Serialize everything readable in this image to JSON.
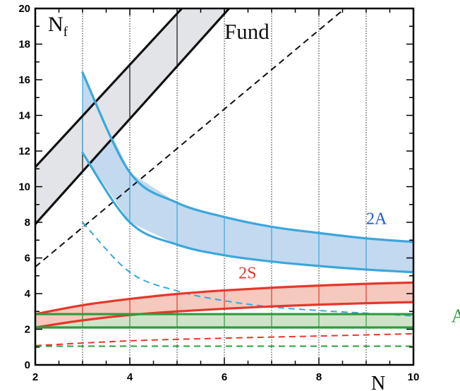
{
  "chart_data": {
    "type": "line",
    "xlim": [
      2,
      10
    ],
    "ylim": [
      0,
      20
    ],
    "x_ticks": [
      "2",
      "4",
      "6",
      "8",
      "10"
    ],
    "y_ticks": [
      "0",
      "2",
      "4",
      "6",
      "8",
      "10",
      "12",
      "14",
      "16",
      "18",
      "20"
    ],
    "xlabel": "N",
    "ylabel": "N",
    "ylabel_sub": "f",
    "vertical_gridlines_x": [
      3,
      4,
      5,
      6,
      7,
      8,
      9
    ],
    "bands": [
      {
        "name": "Fund",
        "color": "#111111",
        "fill": "#e3e4e8",
        "lower": [
          [
            2,
            7.9
          ],
          [
            6.1,
            20
          ]
        ],
        "upper": [
          [
            2,
            11.1
          ],
          [
            5.1,
            20
          ]
        ],
        "dashed": [
          [
            2,
            5.5
          ],
          [
            8.55,
            20
          ]
        ]
      },
      {
        "name": "2A",
        "color": "#3aa7dc",
        "fill": "#c2d9ef",
        "upper": [
          [
            3,
            16.4
          ],
          [
            4,
            10.8
          ],
          [
            5,
            9.1
          ],
          [
            6,
            8.3
          ],
          [
            7,
            7.75
          ],
          [
            8,
            7.4
          ],
          [
            9,
            7.1
          ],
          [
            10,
            6.9
          ]
        ],
        "lower": [
          [
            3,
            11.9
          ],
          [
            4,
            8.0
          ],
          [
            5,
            6.75
          ],
          [
            6,
            6.15
          ],
          [
            7,
            5.8
          ],
          [
            8,
            5.55
          ],
          [
            9,
            5.35
          ],
          [
            10,
            5.2
          ]
        ],
        "dashed": [
          [
            3,
            8.0
          ],
          [
            4,
            5.2
          ],
          [
            5,
            4.15
          ],
          [
            6,
            3.6
          ],
          [
            7,
            3.25
          ],
          [
            8,
            3.05
          ],
          [
            9,
            2.9
          ],
          [
            10,
            2.75
          ]
        ]
      },
      {
        "name": "2S",
        "color": "#e5372b",
        "fill": "#f5c9bd",
        "upper": [
          [
            2,
            2.85
          ],
          [
            3,
            3.35
          ],
          [
            4,
            3.7
          ],
          [
            5,
            3.98
          ],
          [
            6,
            4.18
          ],
          [
            7,
            4.33
          ],
          [
            8,
            4.45
          ],
          [
            9,
            4.55
          ],
          [
            10,
            4.62
          ]
        ],
        "lower": [
          [
            2,
            2.1
          ],
          [
            3,
            2.5
          ],
          [
            4,
            2.8
          ],
          [
            5,
            3.0
          ],
          [
            6,
            3.15
          ],
          [
            7,
            3.28
          ],
          [
            8,
            3.38
          ],
          [
            9,
            3.46
          ],
          [
            10,
            3.52
          ]
        ],
        "dashed": [
          [
            2,
            1.08
          ],
          [
            4,
            1.35
          ],
          [
            6,
            1.5
          ],
          [
            8,
            1.62
          ],
          [
            10,
            1.75
          ]
        ]
      },
      {
        "name": "Adj",
        "color": "#2f9b3c",
        "fill": "#cfe3c8",
        "upper": [
          [
            2,
            2.85
          ],
          [
            10,
            2.85
          ]
        ],
        "lower": [
          [
            2,
            2.1
          ],
          [
            10,
            2.1
          ]
        ],
        "dashed": [
          [
            2,
            1.05
          ],
          [
            10,
            1.05
          ]
        ]
      }
    ],
    "annotations": [
      {
        "text": "Fund",
        "x": 6.0,
        "y": 18.3,
        "color": "#111111",
        "series": "Fund"
      },
      {
        "text": "2A",
        "x": 9.0,
        "y": 7.9,
        "color": "#1f5bd9",
        "series": "2A"
      },
      {
        "text": "2S",
        "x": 6.3,
        "y": 4.85,
        "color": "#e5372b",
        "series": "2S"
      },
      {
        "text": "Adj",
        "x": 10.8,
        "y": 2.4,
        "color": "#2f9b3c",
        "series": "Adj"
      }
    ]
  }
}
